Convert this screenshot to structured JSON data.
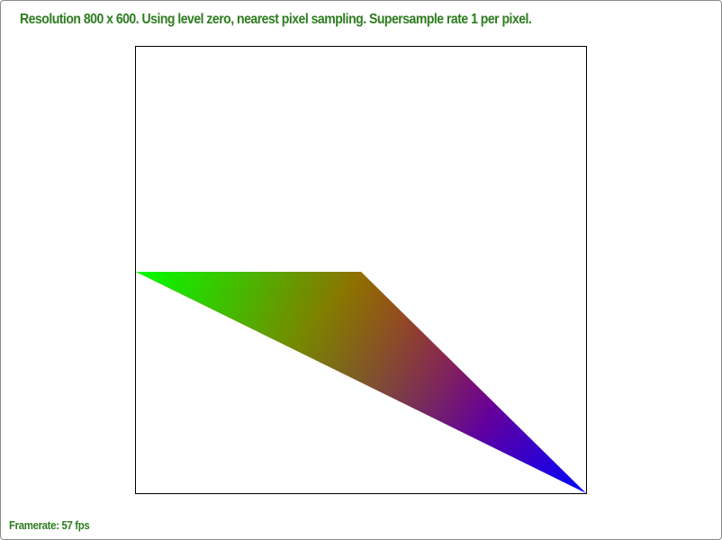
{
  "status": {
    "top_text": "Resolution 800 x 600. Using level zero, nearest pixel sampling. Supersample rate 1 per pixel.",
    "bottom_text": "Framerate: 57 fps"
  },
  "colors": {
    "text": "#2e7d20",
    "vertex_green": "#00ff00",
    "vertex_red": "#ff0000",
    "vertex_blue": "#0000ff"
  },
  "triangle": {
    "vertices": [
      "green",
      "red",
      "blue"
    ]
  }
}
